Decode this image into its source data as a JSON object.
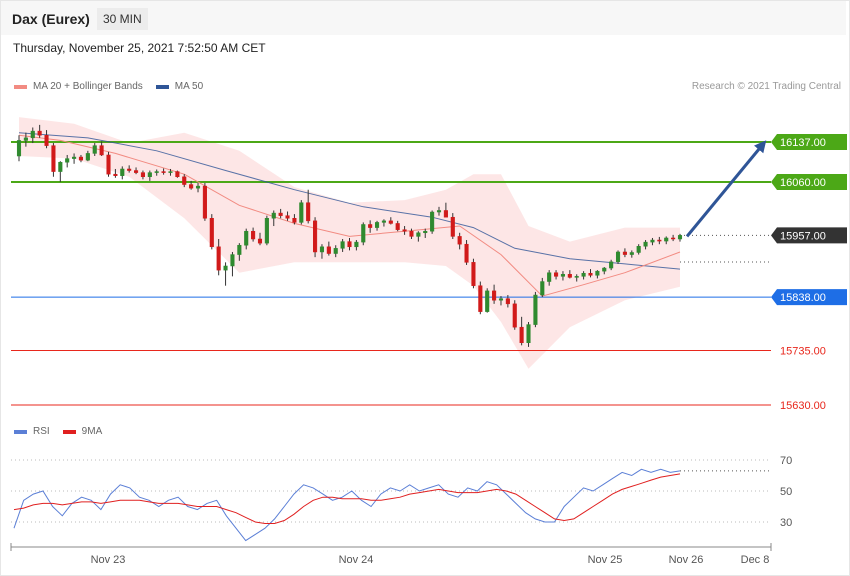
{
  "header": {
    "title": "Dax (Eurex)",
    "timeframe": "30 MIN"
  },
  "datetime": "Thursday, November 25, 2021 7:52:50 AM CET",
  "credit": "Research © 2021 Trading Central",
  "legend_main": [
    {
      "label": "MA 20 + Bollinger Bands",
      "color": "#f28b82"
    },
    {
      "label": "MA 50",
      "color": "#2f5597"
    }
  ],
  "legend_rsi": [
    {
      "label": "RSI",
      "color": "#5b7fd6"
    },
    {
      "label": "9MA",
      "color": "#e02020"
    }
  ],
  "chart_data": [
    {
      "type": "candlestick",
      "x_ticks": [
        "Nov 23",
        "Nov 24",
        "Nov 25",
        "Nov 26",
        "Dec 8"
      ],
      "ylim": [
        15560,
        16200
      ],
      "levels": [
        {
          "value": 16137.0,
          "label": "16137.00",
          "kind": "resistance",
          "color": "#4ca817"
        },
        {
          "value": 16060.0,
          "label": "16060.00",
          "kind": "resistance",
          "color": "#4ca817"
        },
        {
          "value": 15957.0,
          "label": "15957.00",
          "kind": "last-price",
          "color": "#333333"
        },
        {
          "value": 15838.0,
          "label": "15838.00",
          "kind": "pivot",
          "color": "#1e6ee6"
        },
        {
          "value": 15735.0,
          "label": "15735.00",
          "kind": "support",
          "color": "#e8271c"
        },
        {
          "value": 15630.0,
          "label": "15630.00",
          "kind": "support",
          "color": "#e8271c"
        }
      ],
      "target_arrow": {
        "from": 15957,
        "to": 16137
      },
      "candles": [
        [
          16110,
          16150,
          16100,
          16140
        ],
        [
          16140,
          16155,
          16128,
          16145
        ],
        [
          16145,
          16165,
          16135,
          16158
        ],
        [
          16158,
          16170,
          16145,
          16150
        ],
        [
          16150,
          16160,
          16125,
          16130
        ],
        [
          16130,
          16135,
          16070,
          16080
        ],
        [
          16080,
          16100,
          16060,
          16098
        ],
        [
          16098,
          16112,
          16088,
          16105
        ],
        [
          16105,
          16115,
          16095,
          16108
        ],
        [
          16108,
          16112,
          16098,
          16102
        ],
        [
          16102,
          16120,
          16100,
          16115
        ],
        [
          16115,
          16135,
          16110,
          16130
        ],
        [
          16130,
          16138,
          16110,
          16112
        ],
        [
          16112,
          16118,
          16070,
          16075
        ],
        [
          16075,
          16085,
          16068,
          16072
        ],
        [
          16072,
          16090,
          16065,
          16085
        ],
        [
          16085,
          16092,
          16078,
          16082
        ],
        [
          16082,
          16088,
          16075,
          16078
        ],
        [
          16078,
          16082,
          16065,
          16070
        ],
        [
          16070,
          16082,
          16062,
          16078
        ],
        [
          16078,
          16084,
          16072,
          16080
        ],
        [
          16080,
          16086,
          16074,
          16078
        ],
        [
          16078,
          16085,
          16072,
          16080
        ],
        [
          16080,
          16082,
          16068,
          16070
        ],
        [
          16070,
          16075,
          16050,
          16055
        ],
        [
          16055,
          16062,
          16045,
          16048
        ],
        [
          16048,
          16058,
          16040,
          16052
        ],
        [
          16052,
          16058,
          15985,
          15990
        ],
        [
          15990,
          15998,
          15930,
          15935
        ],
        [
          15935,
          15950,
          15880,
          15890
        ],
        [
          15890,
          15905,
          15860,
          15898
        ],
        [
          15898,
          15925,
          15878,
          15920
        ],
        [
          15920,
          15942,
          15908,
          15938
        ],
        [
          15938,
          15970,
          15930,
          15965
        ],
        [
          15965,
          15972,
          15945,
          15950
        ],
        [
          15950,
          15962,
          15938,
          15942
        ],
        [
          15942,
          15995,
          15938,
          15990
        ],
        [
          15990,
          16005,
          15975,
          16000
        ],
        [
          16000,
          16008,
          15990,
          15995
        ],
        [
          15995,
          16003,
          15985,
          15990
        ],
        [
          15990,
          15998,
          15978,
          15982
        ],
        [
          15982,
          16025,
          15978,
          16020
        ],
        [
          16020,
          16045,
          15980,
          15985
        ],
        [
          15985,
          15992,
          15915,
          15925
        ],
        [
          15925,
          15940,
          15912,
          15935
        ],
        [
          15935,
          15945,
          15918,
          15922
        ],
        [
          15922,
          15938,
          15915,
          15932
        ],
        [
          15932,
          15950,
          15925,
          15945
        ],
        [
          15945,
          15952,
          15928,
          15935
        ],
        [
          15935,
          15948,
          15928,
          15944
        ],
        [
          15944,
          15982,
          15938,
          15978
        ],
        [
          15978,
          15986,
          15962,
          15972
        ],
        [
          15972,
          15985,
          15966,
          15982
        ],
        [
          15982,
          15988,
          15974,
          15985
        ],
        [
          15985,
          15992,
          15978,
          15980
        ],
        [
          15980,
          15985,
          15965,
          15968
        ],
        [
          15968,
          15975,
          15958,
          15965
        ],
        [
          15965,
          15970,
          15950,
          15955
        ],
        [
          15955,
          15965,
          15945,
          15962
        ],
        [
          15962,
          15970,
          15952,
          15965
        ],
        [
          15965,
          16005,
          15960,
          16002
        ],
        [
          16002,
          16012,
          15995,
          16005
        ],
        [
          16005,
          16020,
          15998,
          15992
        ],
        [
          15992,
          16000,
          15950,
          15955
        ],
        [
          15955,
          15962,
          15930,
          15940
        ],
        [
          15940,
          15948,
          15900,
          15905
        ],
        [
          15905,
          15912,
          15855,
          15860
        ],
        [
          15860,
          15868,
          15805,
          15810
        ],
        [
          15810,
          15855,
          15808,
          15850
        ],
        [
          15850,
          15862,
          15825,
          15832
        ],
        [
          15832,
          15840,
          15822,
          15835
        ],
        [
          15835,
          15842,
          15818,
          15825
        ],
        [
          15825,
          15832,
          15775,
          15780
        ],
        [
          15780,
          15800,
          15745,
          15750
        ],
        [
          15750,
          15790,
          15742,
          15785
        ],
        [
          15785,
          15848,
          15780,
          15842
        ],
        [
          15842,
          15875,
          15838,
          15868
        ],
        [
          15868,
          15890,
          15860,
          15885
        ],
        [
          15885,
          15890,
          15872,
          15878
        ],
        [
          15878,
          15888,
          15870,
          15882
        ],
        [
          15882,
          15890,
          15874,
          15876
        ],
        [
          15876,
          15882,
          15868,
          15878
        ],
        [
          15878,
          15888,
          15872,
          15884
        ],
        [
          15884,
          15892,
          15876,
          15880
        ],
        [
          15880,
          15890,
          15874,
          15888
        ],
        [
          15888,
          15896,
          15882,
          15894
        ],
        [
          15894,
          15910,
          15890,
          15906
        ],
        [
          15906,
          15928,
          15902,
          15925
        ],
        [
          15925,
          15932,
          15915,
          15920
        ],
        [
          15920,
          15928,
          15914,
          15924
        ],
        [
          15924,
          15940,
          15920,
          15936
        ],
        [
          15936,
          15948,
          15930,
          15944
        ],
        [
          15944,
          15952,
          15938,
          15948
        ],
        [
          15948,
          15954,
          15940,
          15946
        ],
        [
          15946,
          15955,
          15940,
          15952
        ],
        [
          15952,
          15958,
          15946,
          15950
        ],
        [
          15950,
          15960,
          15945,
          15957
        ]
      ],
      "ma20_points": [
        [
          0,
          16150
        ],
        [
          6,
          16140
        ],
        [
          14,
          16115
        ],
        [
          24,
          16075
        ],
        [
          32,
          16015
        ],
        [
          40,
          15980
        ],
        [
          48,
          15955
        ],
        [
          56,
          15965
        ],
        [
          64,
          15975
        ],
        [
          70,
          15920
        ],
        [
          76,
          15840
        ],
        [
          82,
          15862
        ],
        [
          88,
          15885
        ],
        [
          96,
          15925
        ]
      ],
      "ma50_points": [
        [
          0,
          16155
        ],
        [
          10,
          16145
        ],
        [
          20,
          16120
        ],
        [
          30,
          16082
        ],
        [
          40,
          16045
        ],
        [
          50,
          16012
        ],
        [
          60,
          15992
        ],
        [
          66,
          15972
        ],
        [
          72,
          15932
        ],
        [
          80,
          15912
        ],
        [
          88,
          15902
        ],
        [
          96,
          15892
        ]
      ],
      "bollinger_upper": [
        [
          0,
          16185
        ],
        [
          8,
          16172
        ],
        [
          16,
          16135
        ],
        [
          24,
          16155
        ],
        [
          32,
          16120
        ],
        [
          40,
          16050
        ],
        [
          48,
          16020
        ],
        [
          56,
          16025
        ],
        [
          62,
          16045
        ],
        [
          66,
          16075
        ],
        [
          70,
          16075
        ],
        [
          74,
          15975
        ],
        [
          80,
          15945
        ],
        [
          88,
          15972
        ],
        [
          96,
          15972
        ]
      ],
      "bollinger_lower": [
        [
          0,
          16110
        ],
        [
          8,
          16105
        ],
        [
          16,
          16070
        ],
        [
          24,
          15990
        ],
        [
          32,
          15885
        ],
        [
          40,
          15905
        ],
        [
          48,
          15905
        ],
        [
          56,
          15905
        ],
        [
          62,
          15898
        ],
        [
          66,
          15860
        ],
        [
          70,
          15790
        ],
        [
          74,
          15700
        ],
        [
          80,
          15780
        ],
        [
          88,
          15832
        ],
        [
          96,
          15858
        ]
      ]
    },
    {
      "type": "line",
      "title": "RSI",
      "y_ticks": [
        70,
        50,
        30
      ],
      "ylim": [
        10,
        80
      ],
      "series": [
        {
          "name": "RSI",
          "values": [
            26,
            44,
            48,
            50,
            40,
            34,
            42,
            46,
            44,
            38,
            48,
            54,
            52,
            46,
            44,
            40,
            44,
            46,
            40,
            38,
            42,
            44,
            34,
            26,
            18,
            22,
            26,
            32,
            40,
            48,
            54,
            52,
            48,
            44,
            46,
            50,
            44,
            40,
            48,
            52,
            50,
            54,
            50,
            52,
            54,
            48,
            46,
            52,
            50,
            56,
            54,
            48,
            42,
            36,
            32,
            30,
            30,
            40,
            46,
            52,
            50,
            54,
            58,
            62,
            60,
            64,
            62,
            64,
            62,
            63
          ]
        },
        {
          "name": "9MA",
          "values": [
            38,
            39,
            41,
            42,
            42,
            41,
            42,
            43,
            43,
            42,
            43,
            44,
            44,
            44,
            43,
            42,
            42,
            42,
            41,
            40,
            40,
            40,
            38,
            36,
            33,
            30,
            29,
            29,
            31,
            35,
            40,
            44,
            46,
            46,
            45,
            45,
            45,
            44,
            44,
            45,
            46,
            48,
            49,
            50,
            51,
            50,
            49,
            49,
            49,
            50,
            51,
            50,
            48,
            44,
            40,
            36,
            32,
            31,
            32,
            36,
            40,
            44,
            48,
            51,
            53,
            55,
            57,
            59,
            60,
            61
          ]
        }
      ]
    }
  ]
}
